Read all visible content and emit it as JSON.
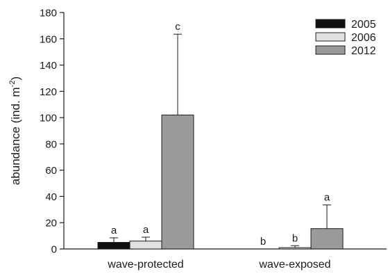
{
  "chart_data": {
    "type": "bar",
    "categories": [
      "wave-protected",
      "wave-exposed"
    ],
    "series": [
      {
        "name": "2005",
        "color": "#111111",
        "values": [
          5,
          0
        ],
        "errors": [
          3.5,
          0
        ],
        "letters": [
          "a",
          "b"
        ]
      },
      {
        "name": "2006",
        "color": "#e2e2e2",
        "values": [
          6,
          1
        ],
        "errors": [
          3,
          1.5
        ],
        "letters": [
          "a",
          "b"
        ]
      },
      {
        "name": "2012",
        "color": "#9a9a9a",
        "values": [
          102,
          15.5
        ],
        "errors": [
          61.5,
          18
        ],
        "letters": [
          "c",
          "a"
        ]
      }
    ],
    "ylabel": "abundance (ind. m",
    "ylabel_superscript": "-2",
    "ylabel_suffix": ")",
    "xlabel": "",
    "title": "",
    "ylim": [
      0,
      180
    ],
    "yticks": [
      0,
      20,
      40,
      60,
      80,
      100,
      120,
      140,
      160,
      180
    ],
    "grid": false,
    "legend_position": "top-right"
  }
}
